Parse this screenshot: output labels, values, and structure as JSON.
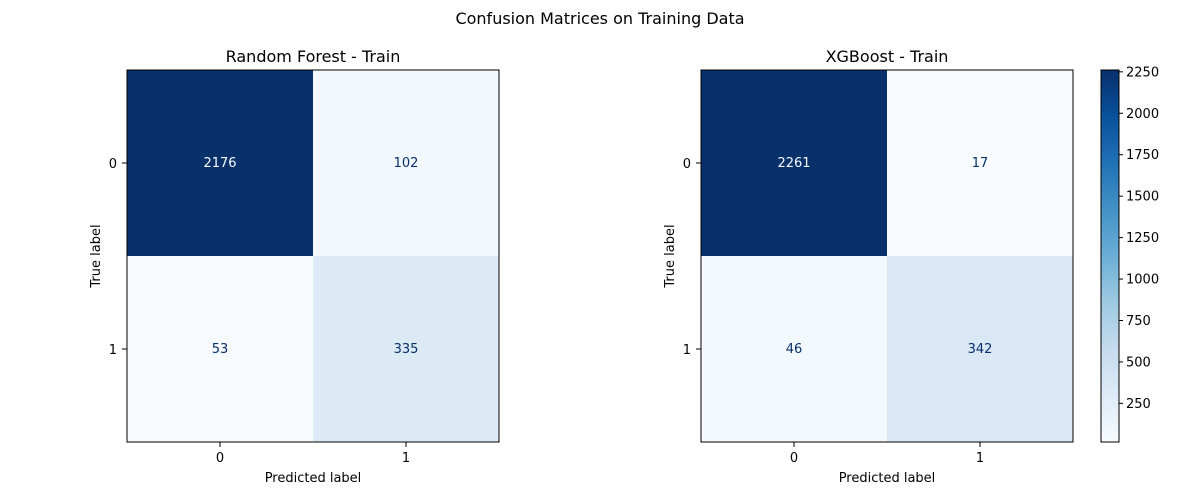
{
  "figure": {
    "suptitle": "Confusion Matrices on Training Data"
  },
  "colormap": {
    "name": "Blues",
    "stops": [
      "#f7fbff",
      "#deebf7",
      "#c6dbef",
      "#9ecae1",
      "#6baed6",
      "#4292c6",
      "#2171b5",
      "#08519c",
      "#08306b"
    ],
    "ticks": [
      "250",
      "500",
      "750",
      "1000",
      "1250",
      "1500",
      "1750",
      "2000",
      "2250"
    ],
    "dark_text": "#08306b",
    "light_text": "#f7fbff"
  },
  "chart_data": [
    {
      "type": "heatmap",
      "title": "Random Forest - Train",
      "xlabel": "Predicted label",
      "ylabel": "True label",
      "x_categories": [
        "0",
        "1"
      ],
      "y_categories": [
        "0",
        "1"
      ],
      "values": [
        [
          2176,
          102
        ],
        [
          53,
          335
        ]
      ],
      "cells": [
        [
          "2176",
          "102"
        ],
        [
          "53",
          "335"
        ]
      ]
    },
    {
      "type": "heatmap",
      "title": "XGBoost - Train",
      "xlabel": "Predicted label",
      "ylabel": "True label",
      "x_categories": [
        "0",
        "1"
      ],
      "y_categories": [
        "0",
        "1"
      ],
      "values": [
        [
          2261,
          17
        ],
        [
          46,
          342
        ]
      ],
      "cells": [
        [
          "2261",
          "17"
        ],
        [
          "46",
          "342"
        ]
      ],
      "colorbar_range": [
        17,
        2261
      ]
    }
  ]
}
